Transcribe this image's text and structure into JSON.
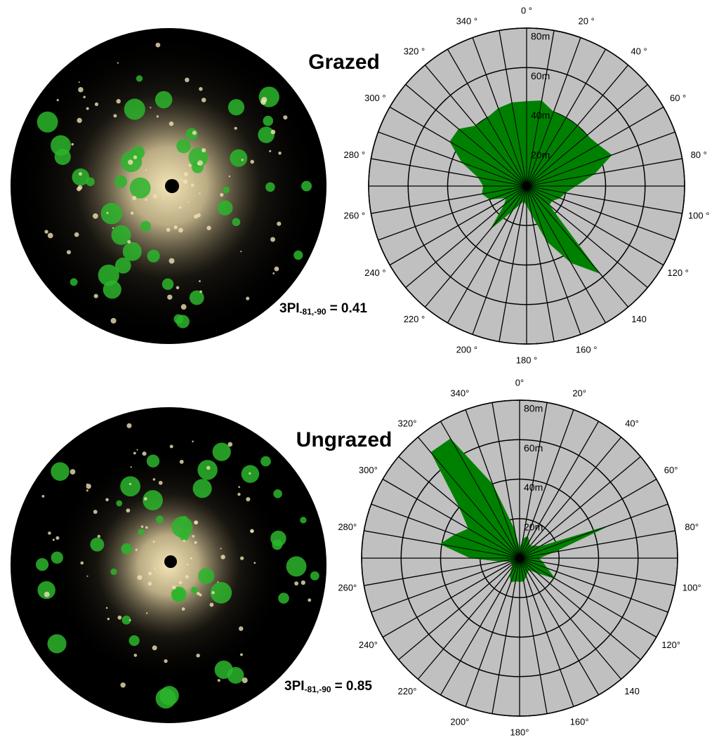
{
  "chart_data": [
    {
      "type": "radar",
      "title": "Grazed",
      "index_label": "3PI",
      "index_subscript": "-81,-90",
      "index_value": "= 0.41",
      "x": [
        0,
        10,
        20,
        30,
        40,
        50,
        60,
        70,
        80,
        90,
        100,
        110,
        120,
        130,
        140,
        150,
        160,
        170,
        180,
        190,
        200,
        210,
        220,
        230,
        240,
        250,
        260,
        270,
        280,
        290,
        300,
        310,
        320,
        330,
        340,
        350
      ],
      "values": [
        43,
        44,
        40,
        40,
        40,
        40,
        42,
        46,
        35,
        25,
        20,
        18,
        15,
        15,
        58,
        45,
        30,
        15,
        10,
        8,
        10,
        15,
        29,
        15,
        12,
        20,
        23,
        22,
        25,
        35,
        45,
        45,
        40,
        40,
        42,
        43
      ],
      "color": "#008000",
      "rlim": [
        0,
        80
      ],
      "rticks": [
        {
          "value": 20,
          "label": "20m"
        },
        {
          "value": 40,
          "label": "40m"
        },
        {
          "value": 60,
          "label": "60m"
        },
        {
          "value": 80,
          "label": "80m"
        }
      ],
      "xticks": [
        {
          "value": 0,
          "label": "0 °"
        },
        {
          "value": 20,
          "label": "20 °"
        },
        {
          "value": 40,
          "label": "40 °"
        },
        {
          "value": 60,
          "label": "60 °"
        },
        {
          "value": 80,
          "label": "80 °"
        },
        {
          "value": 100,
          "label": "100 °"
        },
        {
          "value": 120,
          "label": "120 °"
        },
        {
          "value": 140,
          "label": "140"
        },
        {
          "value": 160,
          "label": "160 °"
        },
        {
          "value": 180,
          "label": "180 °"
        },
        {
          "value": 200,
          "label": "200 °"
        },
        {
          "value": 220,
          "label": "220 °"
        },
        {
          "value": 240,
          "label": "240 °"
        },
        {
          "value": 260,
          "label": "260 °"
        },
        {
          "value": 280,
          "label": "280 °"
        },
        {
          "value": 300,
          "label": "300 °"
        },
        {
          "value": 320,
          "label": "320 °"
        },
        {
          "value": 340,
          "label": "340 °"
        }
      ]
    },
    {
      "type": "radar",
      "title": "Ungrazed",
      "index_label": "3PI",
      "index_subscript": "-81,-90",
      "index_value": "= 0.85",
      "x": [
        0,
        10,
        20,
        30,
        40,
        50,
        60,
        70,
        80,
        90,
        100,
        110,
        120,
        130,
        140,
        150,
        160,
        170,
        180,
        190,
        200,
        210,
        220,
        230,
        240,
        250,
        260,
        270,
        280,
        290,
        300,
        310,
        320,
        330,
        340,
        350
      ],
      "values": [
        5,
        10,
        12,
        10,
        8,
        10,
        12,
        50,
        18,
        10,
        12,
        15,
        21,
        12,
        8,
        8,
        10,
        12,
        12,
        12,
        13,
        10,
        6,
        5,
        5,
        5,
        10,
        25,
        41,
        35,
        30,
        40,
        70,
        70,
        40,
        15
      ],
      "color": "#008000",
      "rlim": [
        0,
        80
      ],
      "rticks": [
        {
          "value": 20,
          "label": "20m"
        },
        {
          "value": 40,
          "label": "40m"
        },
        {
          "value": 60,
          "label": "60m"
        },
        {
          "value": 80,
          "label": "80m"
        }
      ],
      "xticks": [
        {
          "value": 0,
          "label": "0°"
        },
        {
          "value": 20,
          "label": "20°"
        },
        {
          "value": 40,
          "label": "40°"
        },
        {
          "value": 60,
          "label": "60°"
        },
        {
          "value": 80,
          "label": "80°"
        },
        {
          "value": 100,
          "label": "100°"
        },
        {
          "value": 120,
          "label": "120°"
        },
        {
          "value": 140,
          "label": "140"
        },
        {
          "value": 160,
          "label": "160°"
        },
        {
          "value": 180,
          "label": "180°"
        },
        {
          "value": 200,
          "label": "200°"
        },
        {
          "value": 220,
          "label": "220°"
        },
        {
          "value": 240,
          "label": "240°"
        },
        {
          "value": 260,
          "label": "260°"
        },
        {
          "value": 280,
          "label": "280°"
        },
        {
          "value": 300,
          "label": "300°"
        },
        {
          "value": 320,
          "label": "320°"
        },
        {
          "value": 340,
          "label": "340°"
        }
      ]
    }
  ]
}
